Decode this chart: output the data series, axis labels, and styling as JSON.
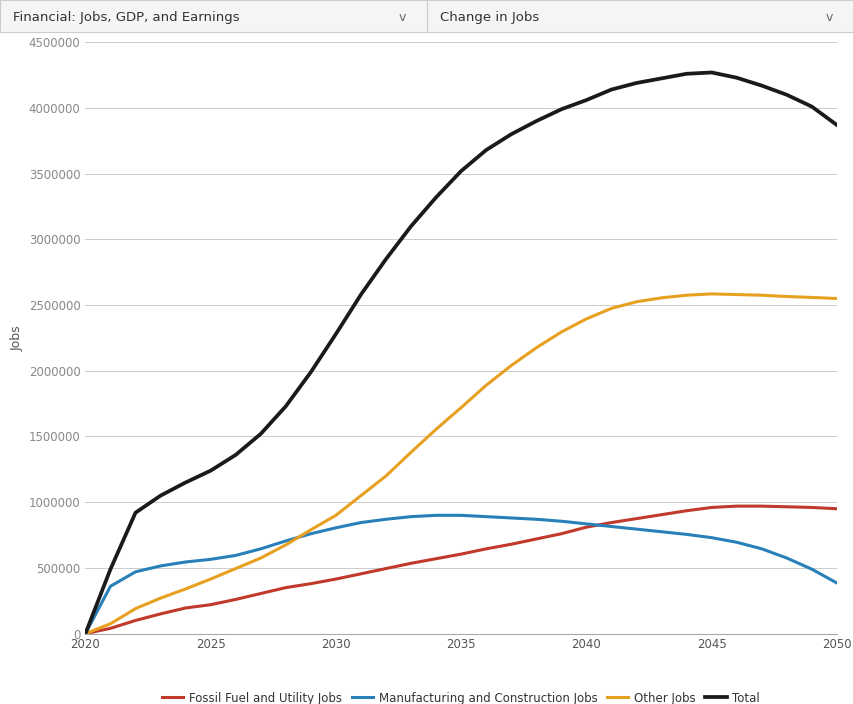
{
  "years": [
    2020,
    2021,
    2022,
    2023,
    2024,
    2025,
    2026,
    2027,
    2028,
    2029,
    2030,
    2031,
    2032,
    2033,
    2034,
    2035,
    2036,
    2037,
    2038,
    2039,
    2040,
    2041,
    2042,
    2043,
    2044,
    2045,
    2046,
    2047,
    2048,
    2049,
    2050
  ],
  "fossil_fuel": [
    0,
    40000,
    100000,
    150000,
    195000,
    220000,
    260000,
    305000,
    350000,
    380000,
    415000,
    455000,
    495000,
    535000,
    570000,
    605000,
    645000,
    680000,
    720000,
    760000,
    810000,
    845000,
    875000,
    905000,
    935000,
    960000,
    970000,
    970000,
    965000,
    960000,
    950000
  ],
  "manufacturing": [
    0,
    360000,
    470000,
    515000,
    545000,
    565000,
    595000,
    645000,
    705000,
    760000,
    805000,
    845000,
    870000,
    890000,
    900000,
    900000,
    890000,
    880000,
    870000,
    855000,
    835000,
    815000,
    795000,
    775000,
    755000,
    730000,
    695000,
    645000,
    575000,
    490000,
    385000
  ],
  "other_jobs": [
    0,
    75000,
    190000,
    270000,
    340000,
    415000,
    495000,
    575000,
    675000,
    790000,
    900000,
    1050000,
    1200000,
    1380000,
    1555000,
    1720000,
    1890000,
    2040000,
    2175000,
    2295000,
    2395000,
    2475000,
    2525000,
    2555000,
    2575000,
    2585000,
    2580000,
    2575000,
    2565000,
    2558000,
    2550000
  ],
  "total": [
    0,
    490000,
    920000,
    1050000,
    1150000,
    1240000,
    1360000,
    1520000,
    1730000,
    1990000,
    2280000,
    2580000,
    2850000,
    3100000,
    3320000,
    3520000,
    3680000,
    3800000,
    3900000,
    3990000,
    4060000,
    4140000,
    4190000,
    4225000,
    4260000,
    4270000,
    4230000,
    4170000,
    4100000,
    4010000,
    3870000
  ],
  "fossil_color": "#c0392b",
  "manufacturing_color": "#2980b9",
  "other_color": "#e8a020",
  "total_color": "#1a1a1a",
  "ylabel": "Jobs",
  "ylim_min": 0,
  "ylim_max": 4500000,
  "xlim_min": 2020,
  "xlim_max": 2050,
  "yticks": [
    0,
    500000,
    1000000,
    1500000,
    2000000,
    2500000,
    3000000,
    3500000,
    4000000,
    4500000
  ],
  "xticks": [
    2020,
    2025,
    2030,
    2035,
    2040,
    2045,
    2050
  ],
  "legend_labels": [
    "Fossil Fuel and Utility Jobs",
    "Manufacturing and Construction Jobs",
    "Other Jobs",
    "Total"
  ],
  "header_left": "Financial: Jobs, GDP, and Earnings",
  "header_right": "Change in Jobs",
  "bg_color": "#ffffff",
  "grid_color": "#cccccc",
  "line_width": 2.2,
  "header_bg": "#f5f5f5",
  "header_border": "#cccccc"
}
